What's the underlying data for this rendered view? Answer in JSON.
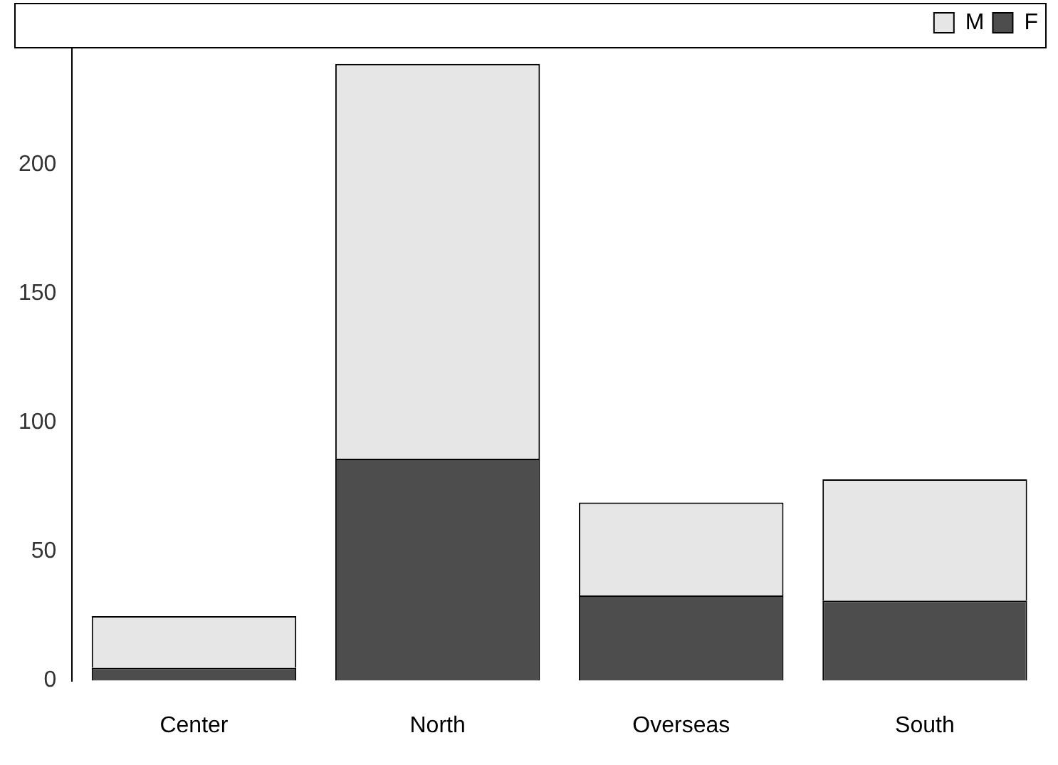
{
  "chart_data": {
    "type": "bar",
    "stacked": true,
    "categories": [
      "Center",
      "North",
      "Overseas",
      "South"
    ],
    "series": [
      {
        "name": "F",
        "color": "#4d4d4d",
        "values": [
          5,
          86,
          33,
          31
        ]
      },
      {
        "name": "M",
        "color": "#e6e6e6",
        "values": [
          20,
          153,
          36,
          47
        ]
      }
    ],
    "ylim": [
      0,
      245
    ],
    "yticks": [
      0,
      50,
      100,
      150,
      200
    ],
    "grid": false,
    "legend": "top right"
  }
}
